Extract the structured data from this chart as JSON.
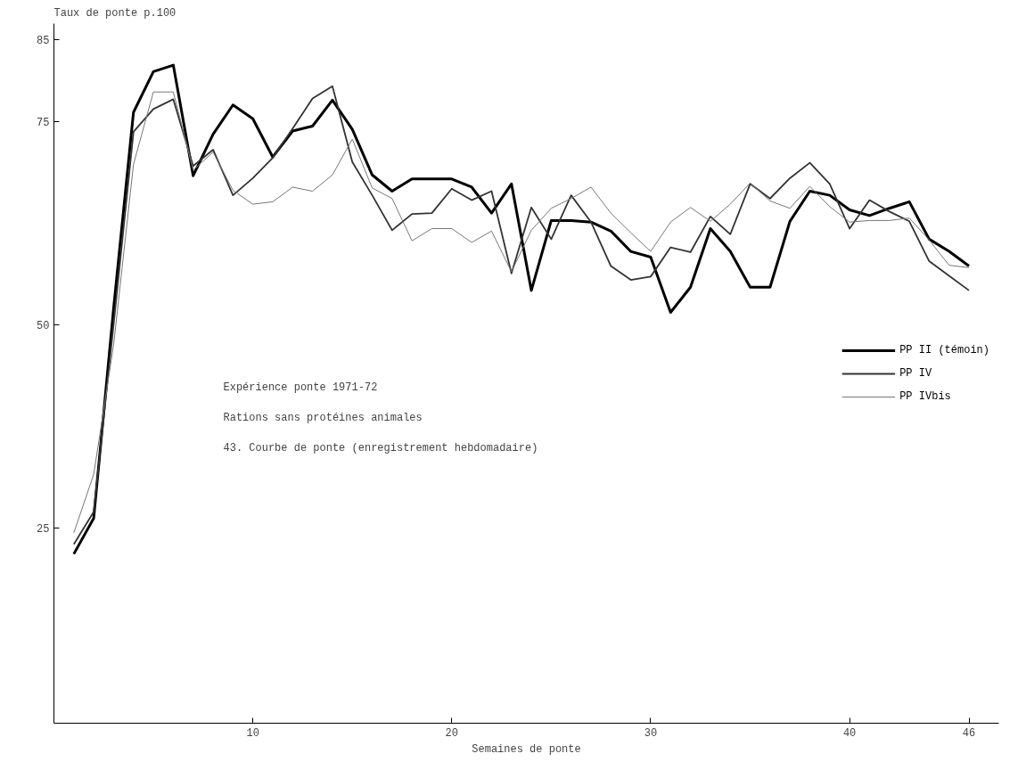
{
  "chart_data": {
    "type": "line",
    "xlabel": "Semaines de ponte",
    "ylabel": "Taux de ponte p.100",
    "x": [
      1,
      2,
      3,
      4,
      5,
      6,
      7,
      8,
      9,
      10,
      11,
      12,
      13,
      14,
      15,
      16,
      17,
      18,
      19,
      20,
      21,
      22,
      23,
      24,
      25,
      26,
      27,
      28,
      29,
      30,
      31,
      32,
      33,
      34,
      35,
      36,
      37,
      38,
      39,
      40,
      41,
      42,
      43,
      44,
      45,
      46
    ],
    "series": [
      {
        "name": "PP II (témoin)",
        "color": "#000000",
        "values": [
          21.8,
          26.2,
          52,
          76.1,
          81.1,
          81.9,
          68.3,
          73.4,
          77,
          75.3,
          70.6,
          73.8,
          74.4,
          77.6,
          74,
          68.4,
          66.4,
          67.9,
          67.9,
          67.9,
          66.9,
          63.7,
          67.3,
          54.2,
          62.8,
          62.8,
          62.6,
          61.5,
          59,
          58.3,
          51.5,
          54.6,
          61.8,
          59,
          54.6,
          54.6,
          62.7,
          66.4,
          65.9,
          64.1,
          63.4,
          64.3,
          65.1,
          60.5,
          59,
          57.2
        ]
      },
      {
        "name": "PP IV",
        "color": "#333333",
        "values": [
          23,
          27,
          50,
          73.7,
          76.5,
          77.7,
          69.5,
          71.5,
          65.9,
          68,
          70.5,
          74.1,
          77.8,
          79.3,
          70,
          65.9,
          61.6,
          63.6,
          63.7,
          66.7,
          65.3,
          66.4,
          56.3,
          64.4,
          60.5,
          65.9,
          62.6,
          57.2,
          55.5,
          55.9,
          59.5,
          58.9,
          63.3,
          61.1,
          67.3,
          65.5,
          68,
          69.9,
          67.3,
          61.8,
          65.3,
          63.9,
          62.7,
          57.8,
          56,
          54.2
        ]
      },
      {
        "name": "PP IVbis",
        "color": "#777777",
        "values": [
          24.4,
          31.6,
          47.5,
          69.7,
          78.6,
          78.6,
          69,
          71.2,
          66.5,
          64.8,
          65.1,
          66.9,
          66.4,
          68.4,
          72.8,
          66.8,
          65.5,
          60.3,
          61.8,
          61.8,
          60.1,
          61.5,
          56.5,
          61.6,
          64.3,
          65.5,
          66.9,
          63.7,
          61.3,
          59,
          62.6,
          64.4,
          62.7,
          64.8,
          67.4,
          65.2,
          64.3,
          67,
          64.5,
          62.6,
          62.8,
          62.8,
          63.1,
          60.4,
          57.3,
          57
        ]
      }
    ],
    "xlim": [
      0,
      47.5
    ],
    "xticks": [
      10,
      20,
      30,
      40,
      46
    ],
    "ylim": [
      1,
      87
    ],
    "yticks": [
      25,
      50,
      75,
      85
    ],
    "grid": false,
    "legend": "right",
    "marker": "none",
    "line_style": "solid",
    "annotations": [
      "Expérience ponte 1971-72",
      "Rations sans protéines animales",
      "43. Courbe de ponte (enregistrement hebdomadaire)"
    ]
  }
}
